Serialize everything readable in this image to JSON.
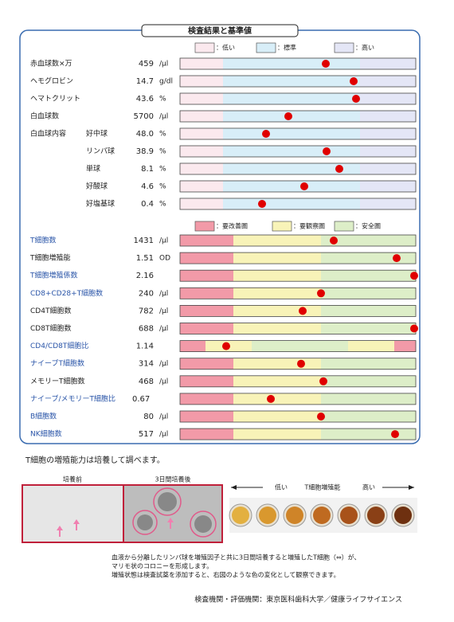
{
  "header": {
    "title": "検査結果と基準値"
  },
  "legend1": [
    "：低い",
    "：標準",
    "：高い"
  ],
  "section1": {
    "rows": [
      {
        "label": "赤血球数×万",
        "value": "459",
        "unit": "/μl"
      },
      {
        "label": "ヘモグロビン",
        "value": "14.7",
        "unit": "g/dl"
      },
      {
        "label": "ヘマトクリット",
        "value": "43.6",
        "unit": "%"
      },
      {
        "label": "白血球数",
        "value": "5700",
        "unit": "/μl"
      },
      {
        "label": "白血球内容",
        "sub": "好中球",
        "value": "48.0",
        "unit": "%"
      },
      {
        "sub": "リンパ球",
        "value": "38.9",
        "unit": "%"
      },
      {
        "sub": "単球",
        "value": "8.1",
        "unit": "%"
      },
      {
        "sub": "好酸球",
        "value": "4.6",
        "unit": "%"
      },
      {
        "sub": "好塩基球",
        "value": "0.4",
        "unit": "%"
      }
    ]
  },
  "legend2": [
    "：要改善圏",
    "：要観察圏",
    "：安全圏"
  ],
  "section2": {
    "rows": [
      {
        "label": "T細胞数",
        "value": "1431",
        "unit": "/μl"
      },
      {
        "label": "T細胞増殖能",
        "value": "1.51",
        "unit": "OD"
      },
      {
        "label": "T細胞増殖係数",
        "value": "2.16"
      },
      {
        "label": "CD8+CD28+T細胞数",
        "value": "240",
        "unit": "/μl"
      },
      {
        "label": "CD4T細胞数",
        "value": "782",
        "unit": "/μl"
      },
      {
        "label": "CD8T細胞数",
        "value": "688",
        "unit": "/μl"
      },
      {
        "label": "CD4/CD8T細胞比",
        "value": "1.14"
      },
      {
        "label": "ナイーブT細胞数",
        "value": "314",
        "unit": "/μl"
      },
      {
        "label": "メモリーT細胞数",
        "value": "468",
        "unit": "/μl"
      },
      {
        "label": "ナイーブ/メモリーT細胞比",
        "value": "0.67"
      },
      {
        "label": "B細胞数",
        "value": "80",
        "unit": "/μl"
      },
      {
        "label": "NK細胞数",
        "value": "517",
        "unit": "/μl"
      }
    ]
  },
  "note": "T細胞の増殖能力は培養して調べます。",
  "figure": {
    "before": "培養前",
    "after": "3日間培養後",
    "low": "低い",
    "axis": "T細胞増殖能",
    "high": "高い"
  },
  "caption": [
    "血液から分離したリンパ球を増殖因子と共に3日間培養すると増殖したT細胞（⇔）が、",
    "マリモ状のコロニーを形成します。",
    "増殖状態は検査試薬を添加すると、右図のような色の変化として観察できます。"
  ],
  "footer": "検査機関・評価機関：東京医科歯科大学／健康ライフサイエンス"
}
